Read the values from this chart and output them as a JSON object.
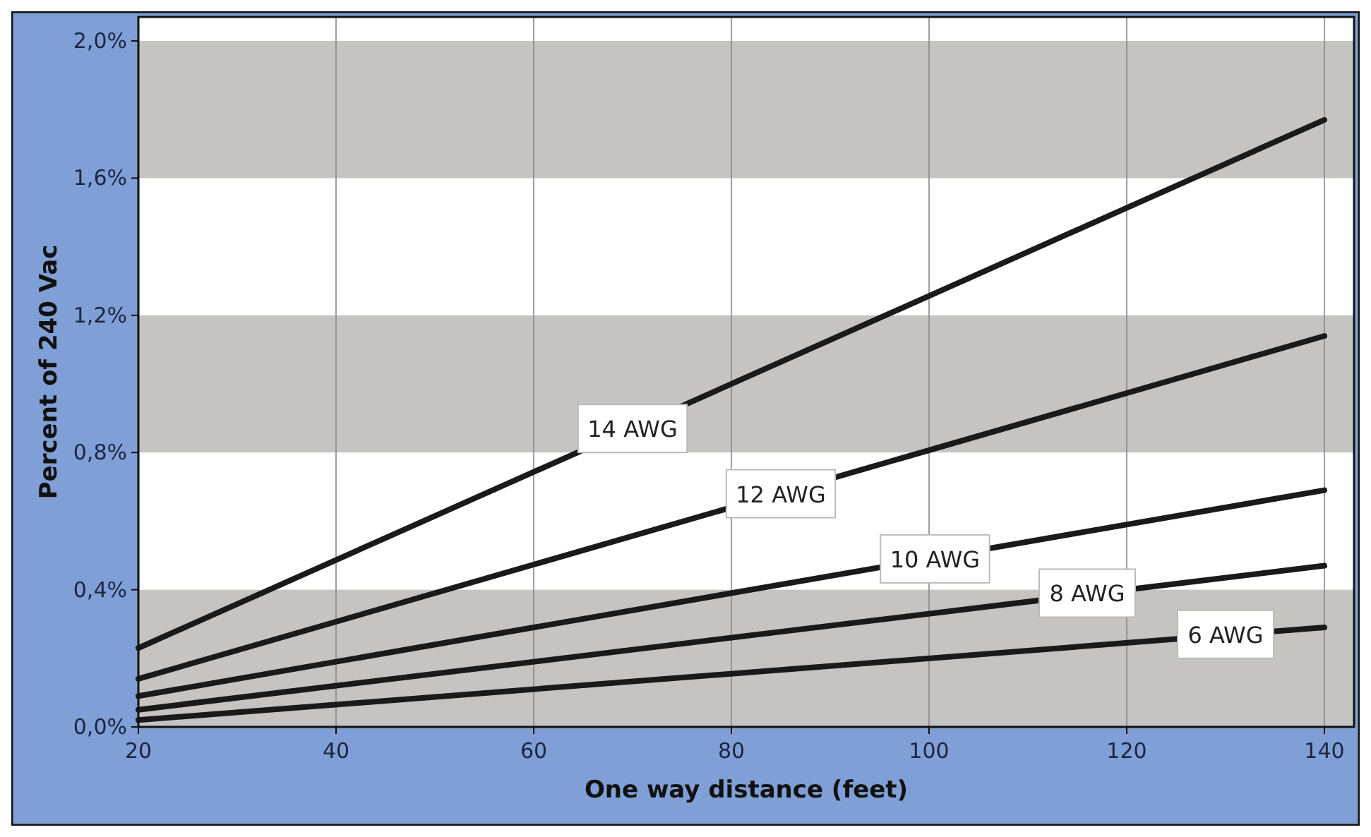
{
  "chart_data": {
    "type": "line",
    "xlabel": "One way distance (feet)",
    "ylabel": "Percent of 240 Vac",
    "x": [
      20,
      140
    ],
    "series": [
      {
        "color": "#1a1a1a",
        "values": [
          0.23,
          1.77
        ]
      },
      {
        "color": "#1a1a1a",
        "values": [
          0.14,
          1.14
        ]
      },
      {
        "color": "#1a1a1a",
        "values": [
          0.09,
          0.69
        ]
      },
      {
        "color": "#1a1a1a",
        "values": [
          0.05,
          0.47
        ]
      },
      {
        "color": "#1a1a1a",
        "values": [
          0.02,
          0.29
        ]
      }
    ],
    "xlim": [
      20,
      143
    ],
    "xticks": [
      20,
      40,
      60,
      80,
      100,
      120,
      140
    ],
    "ylim": [
      0,
      2.07
    ],
    "yticks": [
      {
        "value": 0,
        "label": "0,0%"
      },
      {
        "value": 0.4,
        "label": "0,4%"
      },
      {
        "value": 0.8,
        "label": "0,8%"
      },
      {
        "value": 1.2,
        "label": "1,2%"
      },
      {
        "value": 1.6,
        "label": "1,6%"
      },
      {
        "value": 2.0,
        "label": "2,0%"
      }
    ],
    "bands": [
      {
        "axis": "y",
        "from": 0,
        "to": 0.4,
        "color": "#c5c4c0"
      },
      {
        "axis": "y",
        "from": 0.8,
        "to": 1.2,
        "color": "#c5c4c0"
      },
      {
        "axis": "y",
        "from": 1.6,
        "to": 2.0,
        "color": "#c5c4c0"
      }
    ],
    "annotations": [
      {
        "text": "14 AWG",
        "x": 70,
        "y": 0.87
      },
      {
        "text": "12 AWG",
        "x": 85,
        "y": 0.68
      },
      {
        "text": "10 AWG",
        "x": 100.6,
        "y": 0.49
      },
      {
        "text": "8 AWG",
        "x": 116,
        "y": 0.39
      },
      {
        "text": "6 AWG",
        "x": 130,
        "y": 0.27
      }
    ],
    "grid": "x",
    "line_style": "solid",
    "marker": "none"
  }
}
